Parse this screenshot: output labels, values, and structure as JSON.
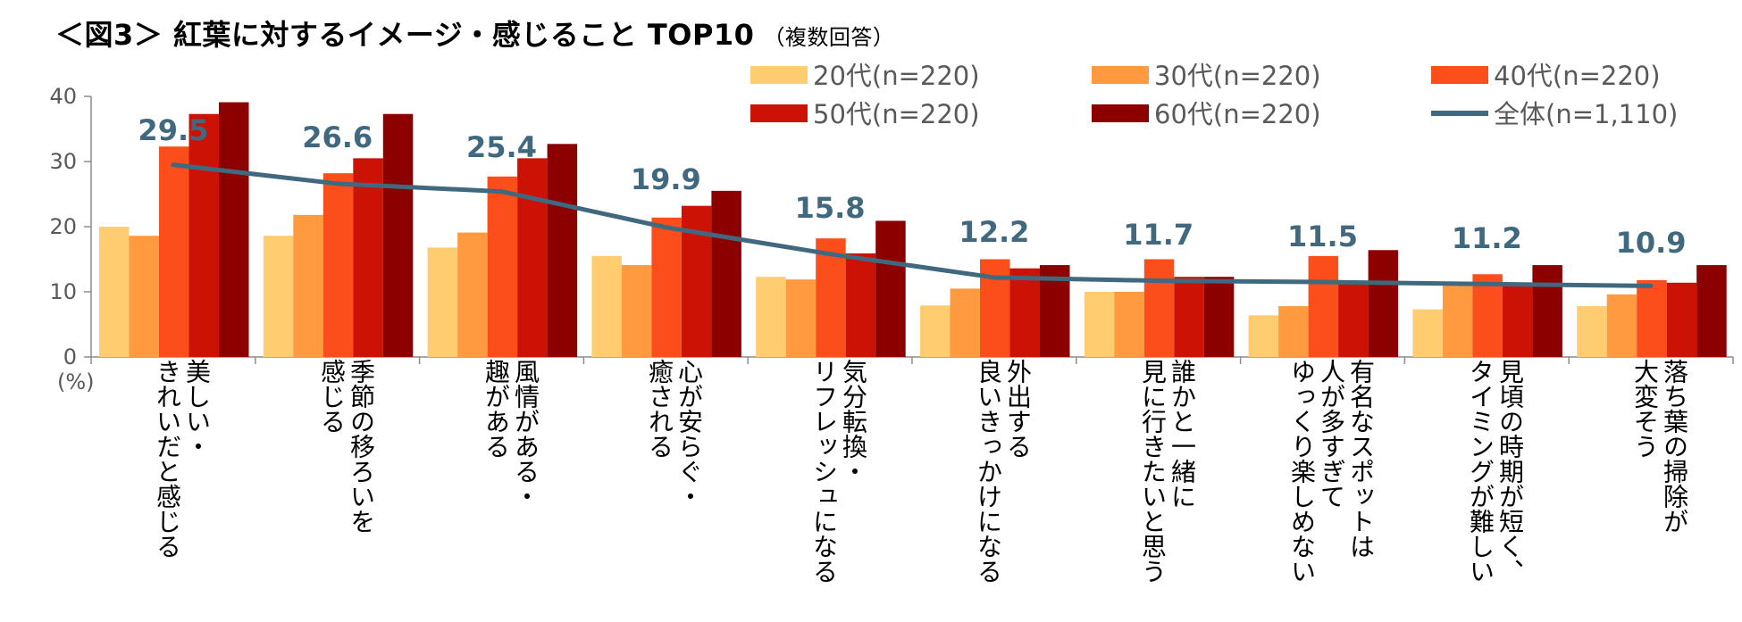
{
  "chart_data": {
    "type": "bar",
    "title": "＜図3＞ 紅葉に対するイメージ・感じること TOP10",
    "subtitle": "（複数回答）",
    "ylabel": "(%)",
    "ylim": [
      0,
      40
    ],
    "yticks": [
      0,
      10,
      20,
      30,
      40
    ],
    "categories": [
      [
        "美しい・",
        "きれいだと感じる"
      ],
      [
        "季節の移ろいを",
        "感じる"
      ],
      [
        "風情がある・",
        "趣がある"
      ],
      [
        "心が安らぐ・",
        "癒される"
      ],
      [
        "気分転換・",
        "リフレッシュになる"
      ],
      [
        "外出する",
        "良いきっかけになる"
      ],
      [
        "誰かと一緒に",
        "見に行きたいと思う"
      ],
      [
        "有名なスポットは",
        "人が多すぎて",
        "ゆっくり楽しめない"
      ],
      [
        "見頃の時期が短く、",
        "タイミングが難しい"
      ],
      [
        "落ち葉の掃除が",
        "大変そう"
      ]
    ],
    "series": [
      {
        "name": "20代(n=220)",
        "color": "#ffcc70",
        "values": [
          20.0,
          18.6,
          16.8,
          15.5,
          12.3,
          7.9,
          10.0,
          6.4,
          7.3,
          7.8
        ]
      },
      {
        "name": "30代(n=220)",
        "color": "#ff9a40",
        "values": [
          18.6,
          21.8,
          19.1,
          14.1,
          11.9,
          10.5,
          10.0,
          7.8,
          11.3,
          9.6
        ]
      },
      {
        "name": "40代(n=220)",
        "color": "#fc4e1a",
        "values": [
          32.3,
          28.2,
          27.7,
          21.4,
          18.2,
          15.0,
          15.0,
          15.5,
          12.7,
          11.8
        ]
      },
      {
        "name": "50代(n=220)",
        "color": "#cc1205",
        "values": [
          37.3,
          30.5,
          30.5,
          23.2,
          15.9,
          13.6,
          12.3,
          11.4,
          11.4,
          11.4
        ]
      },
      {
        "name": "60代(n=220)",
        "color": "#8c0000",
        "values": [
          39.1,
          37.3,
          32.7,
          25.5,
          20.9,
          14.1,
          12.3,
          16.4,
          14.1,
          14.1
        ]
      }
    ],
    "line": {
      "name": "全体(n=1,110)",
      "color": "#40697f",
      "values": [
        29.5,
        26.6,
        25.4,
        19.9,
        15.8,
        12.2,
        11.7,
        11.5,
        11.2,
        10.9
      ]
    },
    "data_labels": [
      "29.5",
      "26.6",
      "25.4",
      "19.9",
      "15.8",
      "12.2",
      "11.7",
      "11.5",
      "11.2",
      "10.9"
    ],
    "legend_position": "top-right"
  }
}
